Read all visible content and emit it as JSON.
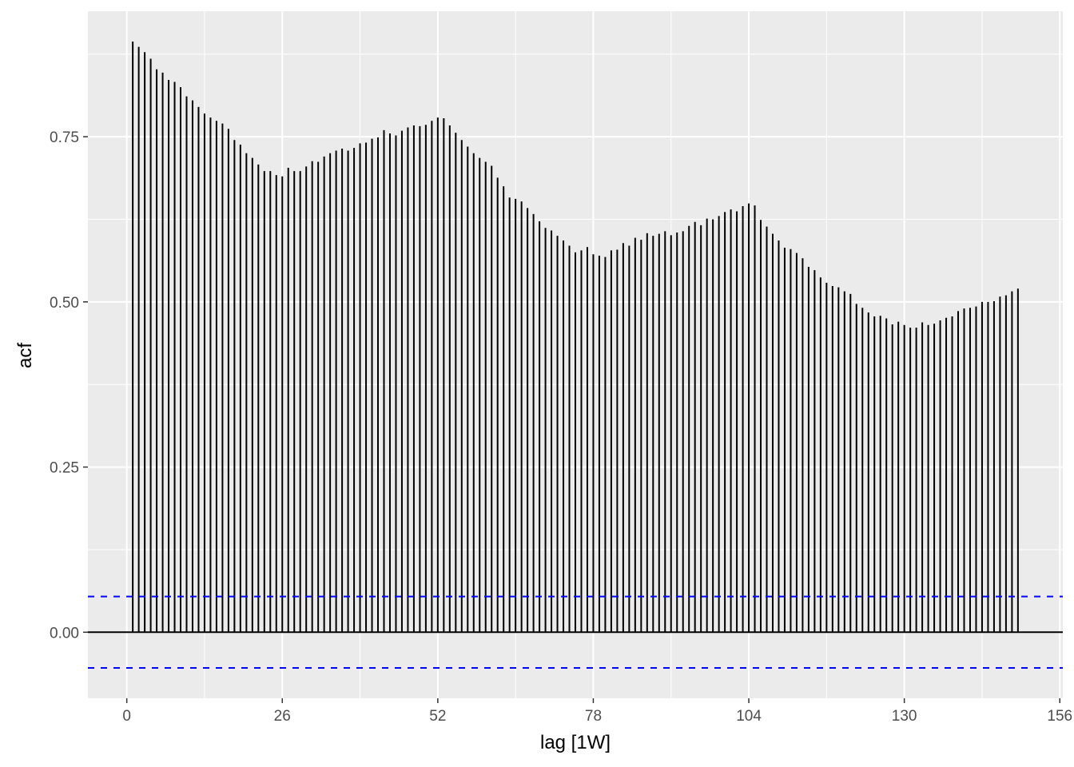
{
  "chart_data": {
    "type": "bar",
    "subtype": "acf-lollipop",
    "xlabel": "lag [1W]",
    "ylabel": "acf",
    "xlim": [
      -6.5,
      156.5
    ],
    "ylim": [
      -0.1,
      0.94
    ],
    "x_ticks": [
      0,
      26,
      52,
      78,
      104,
      130,
      156
    ],
    "y_ticks": [
      0.0,
      0.25,
      0.5,
      0.75
    ],
    "x_tick_labels": [
      "0",
      "26",
      "52",
      "78",
      "104",
      "130",
      "156"
    ],
    "y_tick_labels": [
      "0.00",
      "0.25",
      "0.50",
      "0.75"
    ],
    "grid": true,
    "confidence_bound": 0.054,
    "colors": {
      "panel": "#ebebeb",
      "grid_major": "#ffffff",
      "bars": "#000000",
      "bounds": "#0000ff",
      "tick_text": "#4d4d4d",
      "tick_marks": "#333333"
    },
    "series": [
      {
        "x": [
          1,
          2,
          3,
          4,
          5,
          6,
          7,
          8,
          9,
          10,
          11,
          12,
          13,
          14,
          15,
          16,
          17,
          18,
          19,
          20,
          21,
          22,
          23,
          24,
          25,
          26,
          27,
          28,
          29,
          30,
          31,
          32,
          33,
          34,
          35,
          36,
          37,
          38,
          39,
          40,
          41,
          42,
          43,
          44,
          45,
          46,
          47,
          48,
          49,
          50,
          51,
          52,
          53,
          54,
          55,
          56,
          57,
          58,
          59,
          60,
          61,
          62,
          63,
          64,
          65,
          66,
          67,
          68,
          69,
          70,
          71,
          72,
          73,
          74,
          75,
          76,
          77,
          78,
          79,
          80,
          81,
          82,
          83,
          84,
          85,
          86,
          87,
          88,
          89,
          90,
          91,
          92,
          93,
          94,
          95,
          96,
          97,
          98,
          99,
          100,
          101,
          102,
          103,
          104,
          105,
          106,
          107,
          108,
          109,
          110,
          111,
          112,
          113,
          114,
          115,
          116,
          117,
          118,
          119,
          120,
          121,
          122,
          123,
          124,
          125,
          126,
          127,
          128,
          129,
          130,
          131,
          132,
          133,
          134,
          135,
          136,
          137,
          138,
          139,
          140,
          141,
          142,
          143,
          144,
          145,
          146,
          147,
          148,
          149
        ],
        "values": [
          0.894,
          0.886,
          0.878,
          0.868,
          0.852,
          0.847,
          0.836,
          0.833,
          0.825,
          0.811,
          0.805,
          0.795,
          0.785,
          0.779,
          0.774,
          0.77,
          0.762,
          0.745,
          0.738,
          0.725,
          0.718,
          0.708,
          0.698,
          0.698,
          0.692,
          0.69,
          0.703,
          0.698,
          0.698,
          0.705,
          0.713,
          0.712,
          0.72,
          0.725,
          0.729,
          0.732,
          0.729,
          0.733,
          0.74,
          0.741,
          0.747,
          0.749,
          0.76,
          0.755,
          0.752,
          0.759,
          0.764,
          0.767,
          0.766,
          0.768,
          0.774,
          0.779,
          0.778,
          0.767,
          0.756,
          0.745,
          0.735,
          0.725,
          0.718,
          0.712,
          0.706,
          0.688,
          0.675,
          0.658,
          0.656,
          0.652,
          0.642,
          0.633,
          0.622,
          0.612,
          0.608,
          0.6,
          0.593,
          0.585,
          0.575,
          0.578,
          0.583,
          0.572,
          0.57,
          0.568,
          0.578,
          0.579,
          0.589,
          0.585,
          0.597,
          0.594,
          0.604,
          0.6,
          0.603,
          0.607,
          0.601,
          0.605,
          0.607,
          0.615,
          0.621,
          0.616,
          0.626,
          0.625,
          0.63,
          0.636,
          0.64,
          0.637,
          0.645,
          0.649,
          0.646,
          0.624,
          0.614,
          0.603,
          0.593,
          0.582,
          0.58,
          0.574,
          0.566,
          0.553,
          0.548,
          0.537,
          0.529,
          0.524,
          0.522,
          0.516,
          0.512,
          0.497,
          0.491,
          0.484,
          0.478,
          0.479,
          0.475,
          0.466,
          0.47,
          0.465,
          0.461,
          0.461,
          0.469,
          0.465,
          0.467,
          0.472,
          0.476,
          0.478,
          0.486,
          0.49,
          0.491,
          0.493,
          0.5,
          0.5,
          0.501,
          0.508,
          0.51,
          0.516,
          0.52
        ]
      }
    ]
  }
}
